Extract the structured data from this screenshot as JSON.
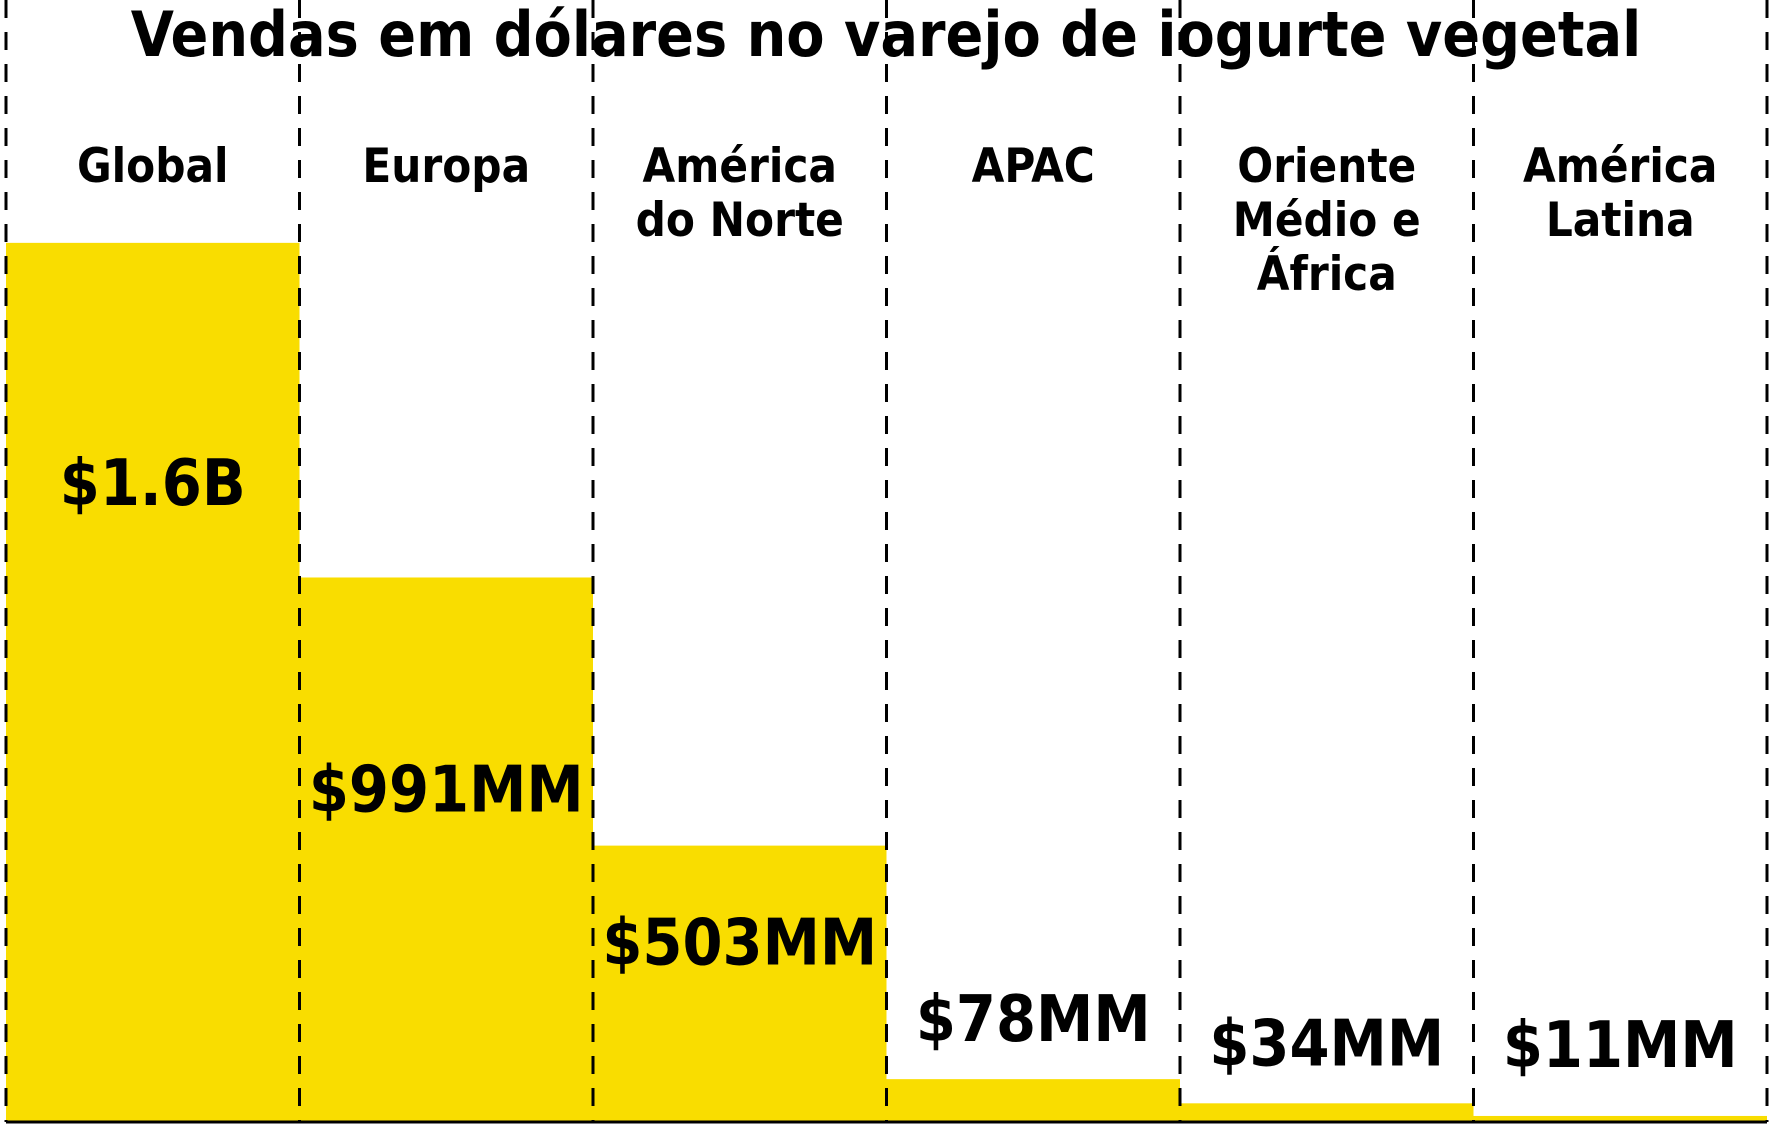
{
  "chart_data": {
    "type": "bar",
    "title": "Vendas em dólares no varejo de iogurte vegetal",
    "categories": [
      [
        "Global"
      ],
      [
        "Europa"
      ],
      [
        "América",
        "do Norte"
      ],
      [
        "APAC"
      ],
      [
        "Oriente",
        "Médio e",
        "África"
      ],
      [
        "América",
        "Latina"
      ]
    ],
    "values": [
      1600,
      991,
      503,
      78,
      34,
      11
    ],
    "value_unit": "million USD",
    "data_labels": [
      "$1.6B",
      "$991MM",
      "$503MM",
      "$78MM",
      "$34MM",
      "$11MM"
    ],
    "ylim": [
      0,
      1860
    ],
    "grid": false,
    "legend": "none",
    "colors": {
      "bar": "#F9DD00",
      "text": "#000000",
      "divider": "#000000",
      "background": "#FFFFFF"
    }
  }
}
